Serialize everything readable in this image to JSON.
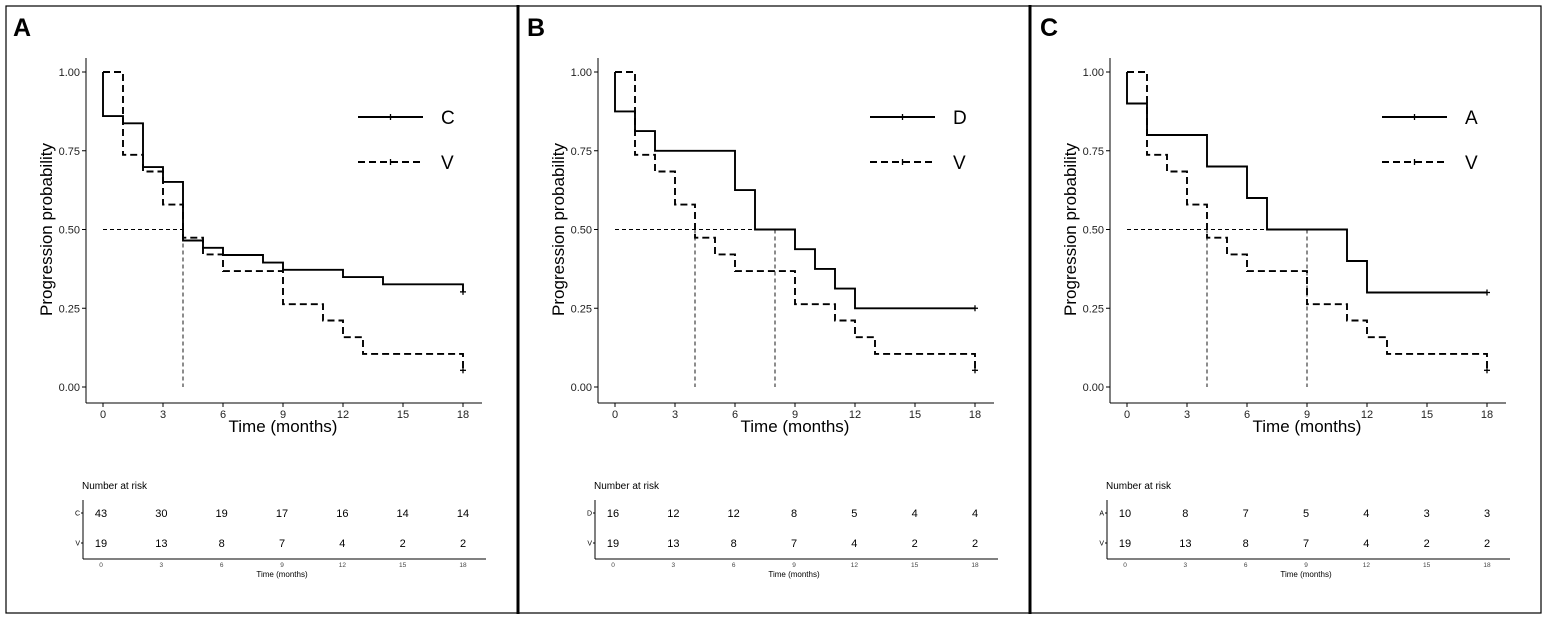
{
  "chart_data": [
    {
      "panel": "A",
      "type": "line",
      "subtype": "kaplan-meier",
      "xlabel": "Time (months)",
      "ylabel": "Progression probability",
      "xlim": [
        0,
        18
      ],
      "ylim": [
        0,
        1
      ],
      "x_ticks": [
        "0",
        "3",
        "6",
        "9",
        "12",
        "15",
        "18"
      ],
      "y_ticks": [
        "0.00",
        "0.25",
        "0.50",
        "0.75",
        "1.00"
      ],
      "median_level": 0.5,
      "series": [
        {
          "name": "C",
          "style": "solid",
          "steps": [
            [
              0,
              1.0
            ],
            [
              0,
              0.86
            ],
            [
              1,
              0.86
            ],
            [
              1,
              0.837
            ],
            [
              2,
              0.837
            ],
            [
              2,
              0.698
            ],
            [
              3,
              0.698
            ],
            [
              3,
              0.651
            ],
            [
              4,
              0.651
            ],
            [
              4,
              0.465
            ],
            [
              5,
              0.465
            ],
            [
              5,
              0.442
            ],
            [
              6,
              0.442
            ],
            [
              6,
              0.419
            ],
            [
              8,
              0.419
            ],
            [
              8,
              0.395
            ],
            [
              9,
              0.395
            ],
            [
              9,
              0.372
            ],
            [
              12,
              0.372
            ],
            [
              12,
              0.349
            ],
            [
              14,
              0.349
            ],
            [
              14,
              0.326
            ],
            [
              18,
              0.326
            ],
            [
              18,
              0.302
            ]
          ],
          "censor": [
            [
              18,
              0.302
            ]
          ],
          "median": 4
        },
        {
          "name": "V",
          "style": "dashed",
          "steps": [
            [
              0,
              1.0
            ],
            [
              1,
              1.0
            ],
            [
              1,
              0.737
            ],
            [
              2,
              0.737
            ],
            [
              2,
              0.684
            ],
            [
              3,
              0.684
            ],
            [
              3,
              0.579
            ],
            [
              4,
              0.579
            ],
            [
              4,
              0.474
            ],
            [
              5,
              0.474
            ],
            [
              5,
              0.421
            ],
            [
              6,
              0.421
            ],
            [
              6,
              0.368
            ],
            [
              9,
              0.368
            ],
            [
              9,
              0.263
            ],
            [
              11,
              0.263
            ],
            [
              11,
              0.211
            ],
            [
              12,
              0.211
            ],
            [
              12,
              0.158
            ],
            [
              13,
              0.158
            ],
            [
              13,
              0.105
            ],
            [
              18,
              0.105
            ],
            [
              18,
              0.053
            ]
          ],
          "censor": [
            [
              18,
              0.053
            ]
          ],
          "median": 4
        }
      ],
      "risk_table": {
        "title": "Number at risk",
        "xlabel": "Time (months)",
        "rows": [
          {
            "stratum": "C",
            "values": [
              "43",
              "30",
              "19",
              "17",
              "16",
              "14",
              "14"
            ]
          },
          {
            "stratum": "V",
            "values": [
              "19",
              "13",
              "8",
              "7",
              "4",
              "2",
              "2"
            ]
          }
        ]
      }
    },
    {
      "panel": "B",
      "type": "line",
      "subtype": "kaplan-meier",
      "xlabel": "Time (months)",
      "ylabel": "Progression probability",
      "xlim": [
        0,
        18
      ],
      "ylim": [
        0,
        1
      ],
      "x_ticks": [
        "0",
        "3",
        "6",
        "9",
        "12",
        "15",
        "18"
      ],
      "y_ticks": [
        "0.00",
        "0.25",
        "0.50",
        "0.75",
        "1.00"
      ],
      "median_level": 0.5,
      "series": [
        {
          "name": "D",
          "style": "solid",
          "steps": [
            [
              0,
              1.0
            ],
            [
              0,
              0.875
            ],
            [
              1,
              0.875
            ],
            [
              1,
              0.8125
            ],
            [
              2,
              0.8125
            ],
            [
              2,
              0.75
            ],
            [
              6,
              0.75
            ],
            [
              6,
              0.625
            ],
            [
              7,
              0.625
            ],
            [
              7,
              0.5
            ],
            [
              9,
              0.5
            ],
            [
              9,
              0.4375
            ],
            [
              10,
              0.4375
            ],
            [
              10,
              0.375
            ],
            [
              11,
              0.375
            ],
            [
              11,
              0.3125
            ],
            [
              12,
              0.3125
            ],
            [
              12,
              0.25
            ],
            [
              18,
              0.25
            ]
          ],
          "censor": [
            [
              18,
              0.25
            ]
          ],
          "median": 8
        },
        {
          "name": "V",
          "style": "dashed",
          "steps": [
            [
              0,
              1.0
            ],
            [
              1,
              1.0
            ],
            [
              1,
              0.737
            ],
            [
              2,
              0.737
            ],
            [
              2,
              0.684
            ],
            [
              3,
              0.684
            ],
            [
              3,
              0.579
            ],
            [
              4,
              0.579
            ],
            [
              4,
              0.474
            ],
            [
              5,
              0.474
            ],
            [
              5,
              0.421
            ],
            [
              6,
              0.421
            ],
            [
              6,
              0.368
            ],
            [
              9,
              0.368
            ],
            [
              9,
              0.263
            ],
            [
              11,
              0.263
            ],
            [
              11,
              0.211
            ],
            [
              12,
              0.211
            ],
            [
              12,
              0.158
            ],
            [
              13,
              0.158
            ],
            [
              13,
              0.105
            ],
            [
              18,
              0.105
            ],
            [
              18,
              0.053
            ]
          ],
          "censor": [
            [
              18,
              0.053
            ]
          ],
          "median": 4
        }
      ],
      "risk_table": {
        "title": "Number at risk",
        "xlabel": "Time (months)",
        "rows": [
          {
            "stratum": "D",
            "values": [
              "16",
              "12",
              "12",
              "8",
              "5",
              "4",
              "4"
            ]
          },
          {
            "stratum": "V",
            "values": [
              "19",
              "13",
              "8",
              "7",
              "4",
              "2",
              "2"
            ]
          }
        ]
      }
    },
    {
      "panel": "C",
      "type": "line",
      "subtype": "kaplan-meier",
      "xlabel": "Time (months)",
      "ylabel": "Progression probability",
      "xlim": [
        0,
        18
      ],
      "ylim": [
        0,
        1
      ],
      "x_ticks": [
        "0",
        "3",
        "6",
        "9",
        "12",
        "15",
        "18"
      ],
      "y_ticks": [
        "0.00",
        "0.25",
        "0.50",
        "0.75",
        "1.00"
      ],
      "median_level": 0.5,
      "series": [
        {
          "name": "A",
          "style": "solid",
          "steps": [
            [
              0,
              1.0
            ],
            [
              0,
              0.9
            ],
            [
              1,
              0.9
            ],
            [
              1,
              0.8
            ],
            [
              4,
              0.8
            ],
            [
              4,
              0.7
            ],
            [
              6,
              0.7
            ],
            [
              6,
              0.6
            ],
            [
              7,
              0.6
            ],
            [
              7,
              0.5
            ],
            [
              11,
              0.5
            ],
            [
              11,
              0.4
            ],
            [
              12,
              0.4
            ],
            [
              12,
              0.3
            ],
            [
              18,
              0.3
            ]
          ],
          "censor": [
            [
              18,
              0.3
            ]
          ],
          "median": 9
        },
        {
          "name": "V",
          "style": "dashed",
          "steps": [
            [
              0,
              1.0
            ],
            [
              1,
              1.0
            ],
            [
              1,
              0.737
            ],
            [
              2,
              0.737
            ],
            [
              2,
              0.684
            ],
            [
              3,
              0.684
            ],
            [
              3,
              0.579
            ],
            [
              4,
              0.579
            ],
            [
              4,
              0.474
            ],
            [
              5,
              0.474
            ],
            [
              5,
              0.421
            ],
            [
              6,
              0.421
            ],
            [
              6,
              0.368
            ],
            [
              9,
              0.368
            ],
            [
              9,
              0.263
            ],
            [
              11,
              0.263
            ],
            [
              11,
              0.211
            ],
            [
              12,
              0.211
            ],
            [
              12,
              0.158
            ],
            [
              13,
              0.158
            ],
            [
              13,
              0.105
            ],
            [
              18,
              0.105
            ],
            [
              18,
              0.053
            ]
          ],
          "censor": [
            [
              18,
              0.053
            ]
          ],
          "median": 4
        }
      ],
      "risk_table": {
        "title": "Number at risk",
        "xlabel": "Time (months)",
        "rows": [
          {
            "stratum": "A",
            "values": [
              "10",
              "8",
              "7",
              "5",
              "4",
              "3",
              "3"
            ]
          },
          {
            "stratum": "V",
            "values": [
              "19",
              "13",
              "8",
              "7",
              "4",
              "2",
              "2"
            ]
          }
        ]
      }
    }
  ]
}
